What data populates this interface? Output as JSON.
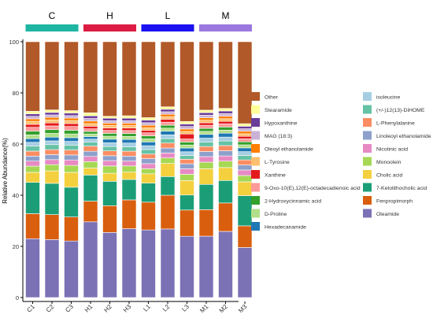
{
  "chart_data": {
    "type": "bar",
    "stacked": true,
    "title": "",
    "xlabel": "",
    "ylabel": "Relative Abundance(%)",
    "ylim": [
      0,
      100
    ],
    "yticks": [
      0,
      20,
      40,
      60,
      80,
      100
    ],
    "categories": [
      "C1",
      "C2",
      "C3",
      "H1",
      "H2",
      "H3",
      "L1",
      "L2",
      "L3",
      "M1",
      "M2",
      "M3"
    ],
    "groups": [
      {
        "label": "C",
        "color": "#1fb5a3",
        "members": [
          "C1",
          "C2",
          "C3"
        ]
      },
      {
        "label": "H",
        "color": "#dc1c43",
        "members": [
          "H1",
          "H2",
          "H3"
        ]
      },
      {
        "label": "L",
        "color": "#1a12f0",
        "members": [
          "L1",
          "L2",
          "L3"
        ]
      },
      {
        "label": "M",
        "color": "#9b78e0",
        "members": [
          "M1",
          "M2",
          "M3"
        ]
      }
    ],
    "legend_position": "right",
    "series": [
      {
        "name": "Oleamide",
        "color": "#7b71b5",
        "values": [
          23.5,
          23.2,
          22.8,
          29.3,
          26.7,
          28.0,
          26.7,
          27.6,
          24.5,
          24.3,
          25.6,
          19.9
        ]
      },
      {
        "name": "Fenpropimorph",
        "color": "#d95f0e",
        "values": [
          10.0,
          10.0,
          9.7,
          8.0,
          11.0,
          11.7,
          11.0,
          13.6,
          10.5,
          10.5,
          11.0,
          8.6
        ]
      },
      {
        "name": "7-Ketolithocholic acid",
        "color": "#1b9e77",
        "values": [
          12.5,
          12.5,
          12.0,
          10.1,
          10.0,
          8.3,
          7.5,
          7.5,
          6.0,
          10.0,
          8.7,
          12.0
        ]
      },
      {
        "name": "Cholic acid",
        "color": "#f4d03f",
        "values": [
          4.0,
          5.0,
          6.0,
          2.7,
          3.3,
          3.0,
          3.7,
          5.3,
          5.8,
          6.2,
          5.0,
          5.5
        ]
      },
      {
        "name": "Monoolein",
        "color": "#a6d854",
        "values": [
          2.5,
          2.5,
          2.8,
          2.5,
          3.0,
          2.5,
          2.0,
          2.2,
          2.5,
          2.6,
          2.5,
          2.5
        ]
      },
      {
        "name": "Nicotinic acid",
        "color": "#e78ac3",
        "values": [
          2.0,
          2.0,
          2.2,
          2.0,
          2.2,
          2.0,
          2.0,
          2.0,
          2.2,
          2.2,
          2.0,
          2.2
        ]
      },
      {
        "name": "Linoleoyl ethanolamide",
        "color": "#8da0cb",
        "values": [
          2.0,
          2.0,
          2.0,
          2.0,
          2.0,
          2.0,
          2.0,
          2.0,
          2.0,
          2.0,
          2.0,
          2.0
        ]
      },
      {
        "name": "L-Phenylalanine",
        "color": "#fc8d62",
        "values": [
          2.0,
          2.0,
          2.0,
          2.0,
          2.0,
          2.0,
          1.8,
          2.0,
          1.8,
          2.0,
          2.0,
          2.0
        ]
      },
      {
        "name": "(+/-)12(13)-DiHOME",
        "color": "#66c2a5",
        "values": [
          2.0,
          2.0,
          2.0,
          1.5,
          1.8,
          1.8,
          1.8,
          1.8,
          1.5,
          1.8,
          1.8,
          1.8
        ]
      },
      {
        "name": "isoleucine",
        "color": "#a6cee3",
        "values": [
          1.5,
          1.5,
          1.5,
          1.2,
          1.5,
          1.5,
          1.5,
          1.5,
          1.5,
          1.5,
          1.5,
          1.5
        ]
      },
      {
        "name": "Hexadecanamide",
        "color": "#1f78b4",
        "values": [
          1.5,
          1.5,
          1.5,
          1.0,
          1.5,
          1.5,
          1.5,
          1.5,
          1.5,
          1.5,
          1.5,
          1.5
        ]
      },
      {
        "name": "D-Proline",
        "color": "#b2df8a",
        "values": [
          1.5,
          1.5,
          1.5,
          1.0,
          1.2,
          1.2,
          1.2,
          1.2,
          1.2,
          1.2,
          1.2,
          1.2
        ]
      },
      {
        "name": "2-Hydroxycinnamic acid",
        "color": "#33a02c",
        "values": [
          1.5,
          1.5,
          1.5,
          1.0,
          1.2,
          1.2,
          1.2,
          1.2,
          1.2,
          1.2,
          1.2,
          1.2
        ]
      },
      {
        "name": "9-Oxo-10(E),12(E)-octadecadienoic acid",
        "color": "#fb9a99",
        "values": [
          1.5,
          1.5,
          1.5,
          1.0,
          1.2,
          1.2,
          1.2,
          1.2,
          1.2,
          1.2,
          1.2,
          1.2
        ]
      },
      {
        "name": "Xanthine",
        "color": "#e31a1c",
        "values": [
          1.2,
          1.2,
          1.2,
          1.0,
          1.0,
          1.0,
          1.0,
          1.2,
          2.0,
          1.0,
          1.0,
          1.0
        ]
      },
      {
        "name": "L-Tyrosine",
        "color": "#fdbf6f",
        "values": [
          1.2,
          1.2,
          1.2,
          1.0,
          1.0,
          1.0,
          1.0,
          1.0,
          1.0,
          1.0,
          1.0,
          1.0
        ]
      },
      {
        "name": "Oleoyl ethanolamide",
        "color": "#ff7f00",
        "values": [
          1.0,
          1.0,
          1.0,
          1.0,
          1.0,
          1.0,
          1.0,
          1.0,
          1.0,
          1.0,
          1.0,
          1.0
        ]
      },
      {
        "name": "MAG (18:3)",
        "color": "#cab2d6",
        "values": [
          1.0,
          1.0,
          1.0,
          1.0,
          1.0,
          1.0,
          1.0,
          1.0,
          1.0,
          1.0,
          1.0,
          1.0
        ]
      },
      {
        "name": "Hypoxanthine",
        "color": "#6a3d9a",
        "values": [
          1.0,
          1.0,
          1.0,
          1.0,
          1.0,
          1.0,
          1.0,
          1.0,
          1.0,
          1.0,
          1.0,
          1.0
        ]
      },
      {
        "name": "Stearamide",
        "color": "#ffff99",
        "values": [
          1.0,
          1.0,
          1.0,
          1.2,
          0.8,
          1.0,
          1.0,
          1.0,
          1.0,
          1.0,
          1.0,
          1.0
        ]
      },
      {
        "name": "Other",
        "color": "#b15928",
        "values": [
          27.8,
          27.3,
          27.8,
          27.5,
          30.6,
          30.1,
          30.0,
          26.2,
          31.9,
          27.1,
          25.8,
          32.6
        ]
      }
    ],
    "legend_left": [
      "Other",
      "Stearamide",
      "Hypoxanthine",
      "MAG (18:3)",
      "Oleoyl ethanolamide",
      "L-Tyrosine",
      "Xanthine",
      "9-Oxo-10(E),12(E)-octadecadienoic acid",
      "2-Hydroxycinnamic acid",
      "D-Proline",
      "Hexadecanamide"
    ],
    "legend_right": [
      "isoleucine",
      "(+/-)12(13)-DiHOME",
      "L-Phenylalanine",
      "Linoleoyl ethanolamide",
      "Nicotinic acid",
      "Monoolein",
      "Cholic acid",
      "7-Ketolithocholic acid",
      "Fenpropimorph",
      "Oleamide"
    ]
  }
}
